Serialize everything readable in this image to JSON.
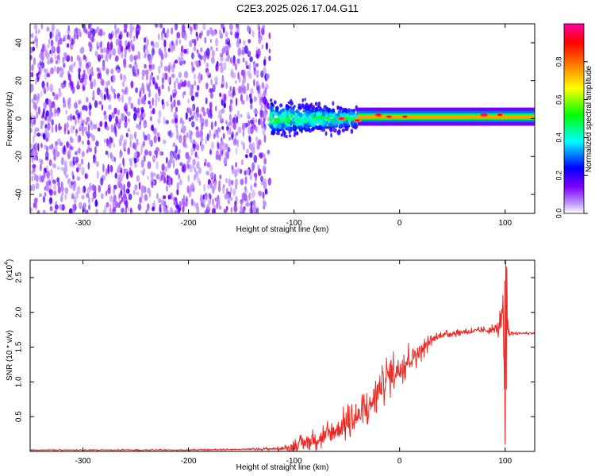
{
  "title": "C2E3.2025.026.17.04.G11",
  "colorbar": {
    "label": "Normalized spectral amplitude",
    "ticks": [
      "0.0",
      "0.2",
      "0.4",
      "0.6",
      "0.8"
    ],
    "tick_values": [
      0.0,
      0.2,
      0.4,
      0.6,
      0.8
    ],
    "colors": [
      "#ffffff",
      "#7f00ff",
      "#0000ff",
      "#00ffff",
      "#00ff00",
      "#ffff00",
      "#ff7f00",
      "#ff0000",
      "#ff00a0"
    ]
  },
  "chart_data": [
    {
      "type": "heatmap",
      "xlabel": "Height of straight line (km)",
      "ylabel": "Frequency (Hz)",
      "xlim": [
        -350,
        128
      ],
      "ylim": [
        -50,
        50
      ],
      "xticks": [
        -300,
        -200,
        -100,
        0,
        100
      ],
      "xtick_labels": [
        "-300",
        "-200",
        "-100",
        "0",
        "100"
      ],
      "yticks": [
        -40,
        -20,
        0,
        20,
        40
      ],
      "ytick_labels": [
        "-40",
        "-20",
        "0",
        "20",
        "40"
      ],
      "regions": [
        {
          "x": [
            -350,
            -123
          ],
          "freq_range": [
            -50,
            50
          ],
          "amplitude": [
            0.05,
            0.2
          ],
          "pattern": "broadband noise"
        },
        {
          "x": [
            -123,
            -40
          ],
          "freq_center": 0,
          "freq_halfwidth": [
            8,
            4
          ],
          "amplitude": [
            0.2,
            0.5
          ],
          "pattern": "noisy carrier"
        },
        {
          "x": [
            -40,
            128
          ],
          "freq_center": 1,
          "freq_halfwidth": 3,
          "amplitude": [
            0.5,
            1.0
          ],
          "pattern": "narrow carrier"
        }
      ],
      "peaks": [
        {
          "x": -55,
          "freq": 0,
          "amplitude": 0.95
        },
        {
          "x": -40,
          "freq": -1,
          "amplitude": 0.9
        },
        {
          "x": -20,
          "freq": 2,
          "amplitude": 0.95
        },
        {
          "x": -10,
          "freq": 1,
          "amplitude": 0.9
        },
        {
          "x": 5,
          "freq": 1,
          "amplitude": 0.9
        },
        {
          "x": 80,
          "freq": 2,
          "amplitude": 1.0
        },
        {
          "x": 95,
          "freq": 2,
          "amplitude": 0.9
        }
      ]
    },
    {
      "type": "line",
      "xlabel": "Height of straight line (km)",
      "ylabel": "SNR (10 * v/v)",
      "yscale_label": "(x10",
      "yscale_exp": "4",
      "xlim": [
        -350,
        128
      ],
      "ylim": [
        0,
        2.75
      ],
      "xticks": [
        -300,
        -200,
        -100,
        0,
        100
      ],
      "xtick_labels": [
        "-300",
        "-200",
        "-100",
        "0",
        "100"
      ],
      "yticks": [
        0.5,
        1.0,
        1.5,
        2.0,
        2.5
      ],
      "ytick_labels": [
        "0.5",
        "1.0",
        "1.5",
        "2.0",
        "2.5"
      ],
      "color": "#ee2a24",
      "series": [
        {
          "x": [
            -350,
            -300,
            -250,
            -200,
            -150,
            -110,
            -100,
            -90,
            -80,
            -70,
            -60,
            -50,
            -40,
            -30,
            -20,
            -10,
            0,
            10,
            20,
            30,
            40,
            50,
            60,
            70,
            80,
            90,
            95,
            98,
            100,
            101,
            103,
            110,
            120,
            128
          ],
          "y": [
            0.02,
            0.02,
            0.02,
            0.02,
            0.03,
            0.04,
            0.07,
            0.13,
            0.17,
            0.22,
            0.3,
            0.4,
            0.5,
            0.6,
            0.9,
            1.1,
            1.2,
            1.35,
            1.45,
            1.6,
            1.68,
            1.7,
            1.72,
            1.73,
            1.74,
            1.75,
            1.8,
            2.05,
            0.2,
            2.6,
            1.7,
            1.7,
            1.7,
            1.7
          ],
          "noise": [
            0.01,
            0.01,
            0.01,
            0.01,
            0.01,
            0.03,
            0.1,
            0.12,
            0.15,
            0.2,
            0.22,
            0.24,
            0.25,
            0.28,
            0.3,
            0.3,
            0.28,
            0.22,
            0.15,
            0.08,
            0.05,
            0.05,
            0.05,
            0.05,
            0.05,
            0.08,
            0.2,
            0.25,
            0.3,
            0.4,
            0.05,
            0.02,
            0.02,
            0.02
          ]
        }
      ]
    }
  ]
}
